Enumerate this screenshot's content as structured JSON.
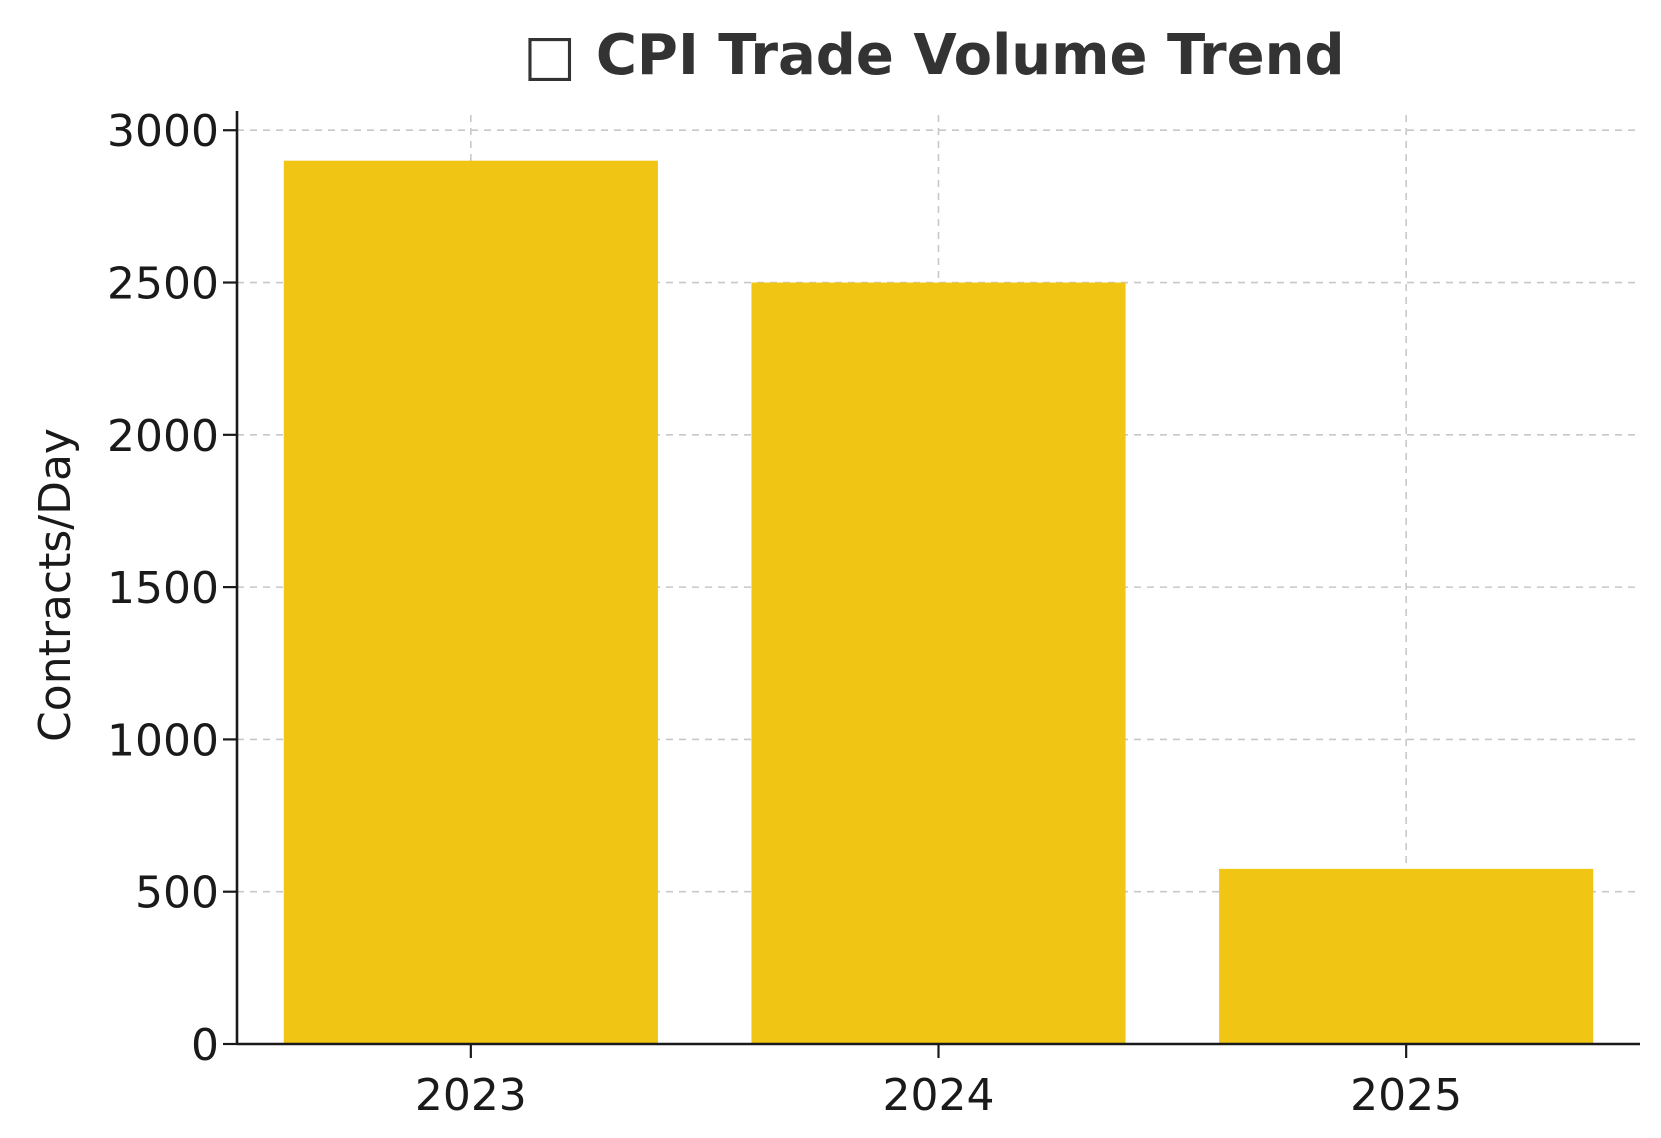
{
  "chart_data": {
    "type": "bar",
    "title": "□ CPI Trade Volume Trend",
    "xlabel": "",
    "ylabel": "Contracts/Day",
    "categories": [
      "2023",
      "2024",
      "2025"
    ],
    "values": [
      2900,
      2500,
      575
    ],
    "ylim": [
      0,
      3050
    ],
    "yticks": [
      0,
      500,
      1000,
      1500,
      2000,
      2500,
      3000
    ],
    "grid": true,
    "bar_color": "#F0C514",
    "legend": "none"
  }
}
